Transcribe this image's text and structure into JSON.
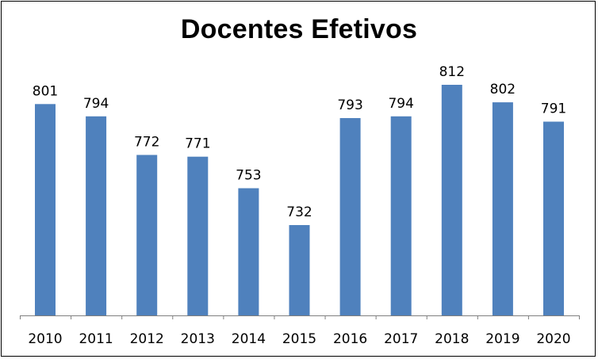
{
  "chart_data": {
    "type": "bar",
    "title": "Docentes Efetivos",
    "xlabel": "",
    "ylabel": "",
    "categories": [
      "2010",
      "2011",
      "2012",
      "2013",
      "2014",
      "2015",
      "2016",
      "2017",
      "2018",
      "2019",
      "2020"
    ],
    "values": [
      801,
      794,
      772,
      771,
      753,
      732,
      793,
      794,
      812,
      802,
      791
    ],
    "value_labels": [
      "801",
      "794",
      "772",
      "771",
      "753",
      "732",
      "793",
      "794",
      "812",
      "802",
      "791"
    ],
    "ylim": [
      700,
      815
    ],
    "grid": false,
    "legend": "none",
    "y_axis_visible": false,
    "bar_color": "#4f81bd"
  }
}
